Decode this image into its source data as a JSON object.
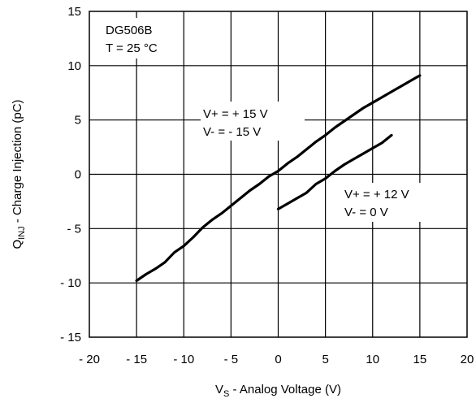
{
  "chart_data": {
    "type": "line",
    "xlabel_main": "V",
    "xlabel_sub": "S",
    "xlabel_rest": " - Analog Voltage (V)",
    "ylabel_main": "Q",
    "ylabel_sub": "INJ",
    "ylabel_rest": " - Charge Injection (pC)",
    "xlim": [
      -20,
      20
    ],
    "ylim": [
      -15,
      15
    ],
    "x_ticks": [
      -20,
      -15,
      -10,
      -5,
      0,
      5,
      10,
      15,
      20
    ],
    "y_ticks": [
      15,
      10,
      5,
      0,
      -5,
      -10,
      -15
    ],
    "x_tick_labels": [
      "- 20",
      "- 15",
      "- 10",
      "- 5",
      "0",
      "5",
      "10",
      "15",
      "20"
    ],
    "y_tick_labels": [
      "15",
      "10",
      "5",
      "0",
      "- 5",
      "- 10",
      "- 15"
    ],
    "grid": true,
    "info_box": [
      "DG506B",
      "T = 25 °C"
    ],
    "series": [
      {
        "x": [
          -15,
          -14,
          -13,
          -12,
          -11,
          -10,
          -9,
          -8,
          -7,
          -6,
          -5,
          -4,
          -3,
          -2,
          -1,
          0,
          1,
          2,
          3,
          4,
          5,
          6,
          7,
          8,
          9,
          10,
          11,
          12,
          13,
          14,
          15
        ],
        "y": [
          -9.8,
          -9.2,
          -8.7,
          -8.1,
          -7.2,
          -6.6,
          -5.8,
          -4.9,
          -4.2,
          -3.6,
          -2.9,
          -2.2,
          -1.5,
          -0.9,
          -0.2,
          0.3,
          1.0,
          1.6,
          2.3,
          3.0,
          3.6,
          4.3,
          4.9,
          5.5,
          6.1,
          6.6,
          7.1,
          7.6,
          8.1,
          8.6,
          9.1
        ],
        "annotation": [
          "V+ = + 15 V",
          "V- = - 15 V"
        ]
      },
      {
        "x": [
          0,
          1,
          2,
          3,
          4,
          5,
          6,
          7,
          8,
          9,
          10,
          11,
          12
        ],
        "y": [
          -3.2,
          -2.7,
          -2.2,
          -1.7,
          -0.9,
          -0.4,
          0.3,
          0.9,
          1.4,
          1.9,
          2.4,
          2.9,
          3.6
        ],
        "annotation": [
          "V+ = + 12 V",
          "V- = 0 V"
        ]
      }
    ]
  }
}
